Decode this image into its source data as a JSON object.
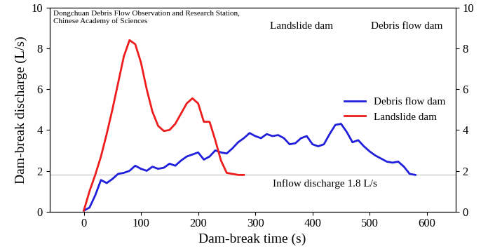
{
  "chart_data": {
    "type": "line",
    "x_label": "Dam-break time (s)",
    "y_label": "Dam-break discharge (L/s)",
    "series": [
      {
        "name": "Debris flow dam",
        "color": "#1f1fdc",
        "x": [
          0,
          10,
          20,
          30,
          40,
          50,
          60,
          70,
          80,
          90,
          100,
          110,
          120,
          130,
          140,
          150,
          160,
          170,
          180,
          190,
          200,
          210,
          220,
          230,
          240,
          250,
          260,
          270,
          280,
          290,
          300,
          310,
          320,
          330,
          340,
          350,
          360,
          370,
          380,
          390,
          400,
          410,
          420,
          430,
          440,
          450,
          460,
          470,
          480,
          490,
          500,
          510,
          520,
          530,
          540,
          550,
          560,
          570,
          580
        ],
        "values": [
          0.05,
          0.2,
          0.8,
          1.55,
          1.4,
          1.6,
          1.85,
          1.9,
          2.0,
          2.25,
          2.1,
          2.0,
          2.2,
          2.1,
          2.15,
          2.35,
          2.25,
          2.5,
          2.7,
          2.8,
          2.9,
          2.55,
          2.7,
          3.0,
          2.9,
          2.85,
          3.1,
          3.4,
          3.6,
          3.85,
          3.7,
          3.6,
          3.8,
          3.7,
          3.75,
          3.6,
          3.3,
          3.35,
          3.6,
          3.7,
          3.3,
          3.2,
          3.3,
          3.8,
          4.25,
          4.3,
          3.9,
          3.4,
          3.5,
          3.2,
          2.95,
          2.75,
          2.6,
          2.45,
          2.4,
          2.45,
          2.2,
          1.85,
          1.8
        ]
      },
      {
        "name": "Landslide dam",
        "color": "#ee1c1c",
        "x": [
          0,
          10,
          20,
          30,
          40,
          50,
          60,
          70,
          80,
          90,
          100,
          110,
          120,
          130,
          140,
          150,
          160,
          170,
          180,
          190,
          200,
          210,
          220,
          230,
          240,
          250,
          260,
          270,
          280
        ],
        "values": [
          0.05,
          1.0,
          1.8,
          2.7,
          3.8,
          5.0,
          6.3,
          7.6,
          8.4,
          8.2,
          7.3,
          6.0,
          4.9,
          4.2,
          3.95,
          4.0,
          4.3,
          4.8,
          5.3,
          5.55,
          5.3,
          4.4,
          4.4,
          3.5,
          2.5,
          1.9,
          1.85,
          1.8,
          1.8
        ]
      }
    ],
    "inflow_discharge": 1.8,
    "annotations": [
      "Inflow discharge 1.8 L/s",
      "Dongchuan Debris Flow Observation and Research Station,\nChinese Academy of Sciences",
      "Landslide dam",
      "Debris flow dam"
    ],
    "xlim": [
      -60,
      650
    ],
    "xticks": [
      0,
      100,
      200,
      300,
      400,
      500,
      600
    ],
    "ylim": [
      0,
      10
    ],
    "yticks": [
      0,
      2,
      4,
      6,
      8,
      10
    ],
    "y2lim": [
      0,
      10
    ],
    "y2ticks": [
      0,
      2,
      4,
      6,
      8,
      10
    ],
    "legend": "center right"
  }
}
